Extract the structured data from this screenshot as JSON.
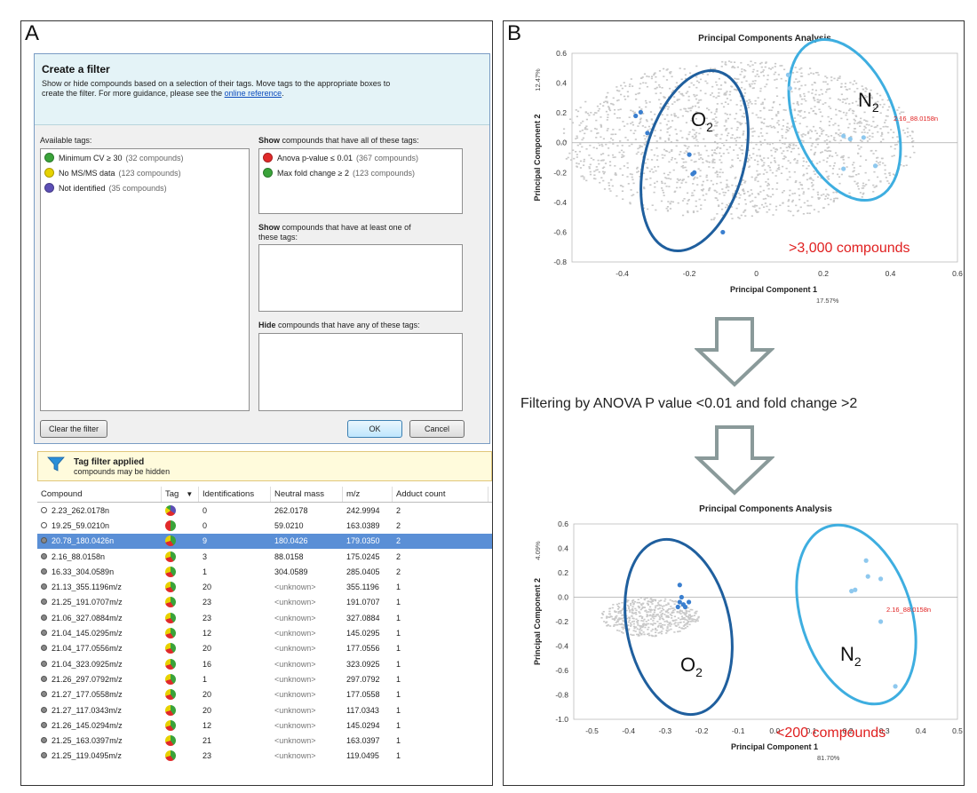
{
  "panels": {
    "a": "A",
    "b": "B"
  },
  "dialog": {
    "title": "Create a filter",
    "desc1": "Show or hide compounds based on a selection of their tags. Move tags to the appropriate boxes to",
    "desc2": "create the filter. For more guidance, please see the",
    "link": "online reference",
    "period": ".",
    "available_label": "Available tags:",
    "available": [
      {
        "name": "Minimum CV ≥ 30",
        "count": "(32 compounds)",
        "color": "#3aa33a"
      },
      {
        "name": "No MS/MS data",
        "count": "(123 compounds)",
        "color": "#e6d200"
      },
      {
        "name": "Not identified",
        "count": "(35 compounds)",
        "color": "#5c4fb5"
      }
    ],
    "show_all_bold": "Show",
    "show_all_rest": "compounds that have all of these tags:",
    "show_all": [
      {
        "name": "Anova p-value ≤ 0.01",
        "count": "(367 compounds)",
        "color": "#e02a2a"
      },
      {
        "name": "Max fold change ≥ 2",
        "count": "(123 compounds)",
        "color": "#3aa33a"
      }
    ],
    "show_any_bold": "Show",
    "show_any_rest1": "compounds that have at least one of",
    "show_any_rest2": "these tags:",
    "hide_bold": "Hide",
    "hide_rest": "compounds that have any of these tags:",
    "clear_button": "Clear the filter",
    "ok_button": "OK",
    "cancel_button": "Cancel"
  },
  "banner": {
    "title": "Tag filter applied",
    "subtitle": "compounds may be hidden"
  },
  "table": {
    "headers": [
      "Compound",
      "Tag",
      "Identifications",
      "Neutral mass",
      "m/z",
      "Adduct count"
    ],
    "rows": [
      {
        "c": "2.23_262.0178n",
        "id": "0",
        "nm": "262.0178",
        "mz": "242.9994",
        "ad": "2",
        "pie": "v3",
        "icon": "ring"
      },
      {
        "c": "19.25_59.0210n",
        "id": "0",
        "nm": "59.0210",
        "mz": "163.0389",
        "ad": "2",
        "pie": "v2",
        "icon": "ring"
      },
      {
        "c": "20.78_180.0426n",
        "id": "9",
        "nm": "180.0426",
        "mz": "179.0350",
        "ad": "2",
        "pie": "v1",
        "icon": "filled"
      },
      {
        "c": "2.16_88.0158n",
        "id": "3",
        "nm": "88.0158",
        "mz": "175.0245",
        "ad": "2",
        "pie": "v1",
        "icon": "filled"
      },
      {
        "c": "16.33_304.0589n",
        "id": "1",
        "nm": "304.0589",
        "mz": "285.0405",
        "ad": "2",
        "pie": "v1",
        "icon": "filled"
      },
      {
        "c": "21.13_355.1196m/z",
        "id": "20",
        "nm": "<unknown>",
        "mz": "355.1196",
        "ad": "1",
        "pie": "v1",
        "icon": "filled"
      },
      {
        "c": "21.25_191.0707m/z",
        "id": "23",
        "nm": "<unknown>",
        "mz": "191.0707",
        "ad": "1",
        "pie": "v1",
        "icon": "filled"
      },
      {
        "c": "21.06_327.0884m/z",
        "id": "23",
        "nm": "<unknown>",
        "mz": "327.0884",
        "ad": "1",
        "pie": "v1",
        "icon": "filled"
      },
      {
        "c": "21.04_145.0295m/z",
        "id": "12",
        "nm": "<unknown>",
        "mz": "145.0295",
        "ad": "1",
        "pie": "v1",
        "icon": "filled"
      },
      {
        "c": "21.04_177.0556m/z",
        "id": "20",
        "nm": "<unknown>",
        "mz": "177.0556",
        "ad": "1",
        "pie": "v1",
        "icon": "filled"
      },
      {
        "c": "21.04_323.0925m/z",
        "id": "16",
        "nm": "<unknown>",
        "mz": "323.0925",
        "ad": "1",
        "pie": "v1",
        "icon": "filled"
      },
      {
        "c": "21.26_297.0792m/z",
        "id": "1",
        "nm": "<unknown>",
        "mz": "297.0792",
        "ad": "1",
        "pie": "v1",
        "icon": "filled"
      },
      {
        "c": "21.27_177.0558m/z",
        "id": "20",
        "nm": "<unknown>",
        "mz": "177.0558",
        "ad": "1",
        "pie": "v1",
        "icon": "filled"
      },
      {
        "c": "21.27_117.0343m/z",
        "id": "20",
        "nm": "<unknown>",
        "mz": "117.0343",
        "ad": "1",
        "pie": "v1",
        "icon": "filled"
      },
      {
        "c": "21.26_145.0294m/z",
        "id": "12",
        "nm": "<unknown>",
        "mz": "145.0294",
        "ad": "1",
        "pie": "v1",
        "icon": "filled"
      },
      {
        "c": "21.25_163.0397m/z",
        "id": "21",
        "nm": "<unknown>",
        "mz": "163.0397",
        "ad": "1",
        "pie": "v1",
        "icon": "filled"
      },
      {
        "c": "21.25_119.0495m/z",
        "id": "23",
        "nm": "<unknown>",
        "mz": "119.0495",
        "ad": "1",
        "pie": "v1",
        "icon": "filled"
      }
    ],
    "selected_row": 2
  },
  "filter_text": "Filtering by ANOVA P value <0.01 and fold change >2",
  "chart_data": [
    {
      "type": "scatter",
      "title": "Principal Components Analysis",
      "xlabel": "Principal Component 1",
      "xpct": "17.57%",
      "ylabel": "Principal Component 2",
      "ypct": "12.47%",
      "xlim": [
        -0.55,
        0.6
      ],
      "ylim": [
        -0.8,
        0.6
      ],
      "xticks": [
        "-0.4",
        "-0.2",
        "0",
        "0.2",
        "0.4",
        "0.6"
      ],
      "yticks": [
        "0.6",
        "0.4",
        "0.2",
        "0.0",
        "-0.2",
        "-0.4",
        "-0.6",
        "-0.8"
      ],
      "annotation": ">3,000 compounds",
      "red_label": "2.16_88.0158n",
      "series": [
        {
          "name": "O2",
          "color": "#3a7fcf",
          "points": [
            [
              -0.36,
              0.18
            ],
            [
              -0.345,
              0.205
            ],
            [
              -0.325,
              0.065
            ],
            [
              -0.2,
              -0.08
            ],
            [
              -0.185,
              -0.2
            ],
            [
              -0.19,
              -0.21
            ],
            [
              -0.1,
              -0.6
            ]
          ]
        },
        {
          "name": "N2",
          "color": "#8ec8ee",
          "points": [
            [
              0.095,
              0.455
            ],
            [
              0.1,
              0.365
            ],
            [
              0.26,
              0.045
            ],
            [
              0.28,
              0.025
            ],
            [
              0.32,
              0.035
            ],
            [
              0.355,
              -0.155
            ],
            [
              0.26,
              -0.175
            ]
          ]
        }
      ],
      "groups": [
        {
          "label": "O",
          "sub": "2",
          "color": "#1f5f9e"
        },
        {
          "label": "N",
          "sub": "2",
          "color": "#3eaee0"
        }
      ]
    },
    {
      "type": "scatter",
      "title": "Principal Components Analysis",
      "xlabel": "Principal Component 1",
      "xpct": "81.70%",
      "ylabel": "Principal Component 2",
      "ypct": "4.09%",
      "xlim": [
        -0.55,
        0.5
      ],
      "ylim": [
        -1.0,
        0.6
      ],
      "xticks": [
        "-0.5",
        "-0.4",
        "-0.3",
        "-0.2",
        "-0.1",
        "0.0",
        "0.1",
        "0.2",
        "0.3",
        "0.4",
        "0.5"
      ],
      "yticks": [
        "0.6",
        "0.4",
        "0.2",
        "0.0",
        "-0.2",
        "-0.4",
        "-0.6",
        "-0.8",
        "-1.0"
      ],
      "annotation": "<200 compounds",
      "red_label": "2.16_88.0158n",
      "series": [
        {
          "name": "O2",
          "color": "#3a7fcf",
          "points": [
            [
              -0.26,
              0.1
            ],
            [
              -0.255,
              0.0
            ],
            [
              -0.26,
              -0.04
            ],
            [
              -0.25,
              -0.06
            ],
            [
              -0.245,
              -0.08
            ],
            [
              -0.235,
              -0.04
            ],
            [
              -0.265,
              -0.08
            ]
          ]
        },
        {
          "name": "N2",
          "color": "#8ec8ee",
          "points": [
            [
              0.25,
              0.3
            ],
            [
              0.29,
              0.15
            ],
            [
              0.21,
              0.05
            ],
            [
              0.22,
              0.06
            ],
            [
              0.29,
              -0.2
            ],
            [
              0.33,
              -0.73
            ],
            [
              0.255,
              0.17
            ]
          ]
        }
      ],
      "groups": [
        {
          "label": "O",
          "sub": "2",
          "color": "#1f5f9e"
        },
        {
          "label": "N",
          "sub": "2",
          "color": "#3eaee0"
        }
      ]
    }
  ]
}
